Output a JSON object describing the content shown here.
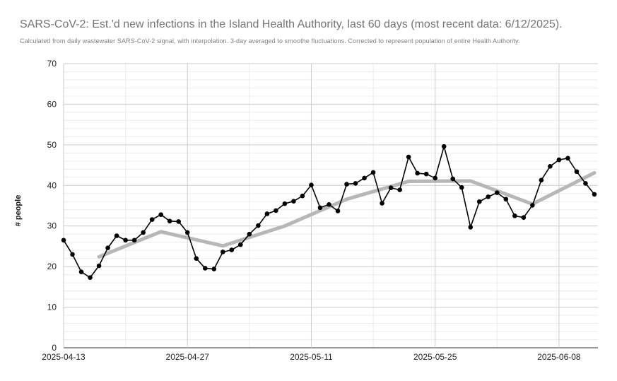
{
  "chart_data": {
    "type": "line",
    "title": "SARS-CoV-2: Est.'d new infections in the Island Health Authority, last 60 days (most recent data: 6/12/2025).",
    "subtitle": "Calculated from daily wastewater SARS-CoV-2 signal, with interpolation. 3-day averaged to smoothe fluctuations. Corrected to represent population of entire Health Authority.",
    "xlabel": "",
    "ylabel": "# people",
    "ylim": [
      0,
      70
    ],
    "yticks": [
      0,
      10,
      20,
      30,
      40,
      50,
      60,
      70
    ],
    "x_start": "2025-04-13",
    "x_end": "2025-06-12",
    "xticks": [
      "2025-04-13",
      "2025-04-27",
      "2025-05-11",
      "2025-05-25",
      "2025-06-08"
    ],
    "grid": true,
    "legend": "none",
    "series": [
      {
        "color": "#000000",
        "markers": true,
        "points": [
          [
            "2025-04-13",
            26.5
          ],
          [
            "2025-04-14",
            23.0
          ],
          [
            "2025-04-15",
            18.7
          ],
          [
            "2025-04-16",
            17.3
          ],
          [
            "2025-04-17",
            20.2
          ],
          [
            "2025-04-18",
            24.6
          ],
          [
            "2025-04-19",
            27.6
          ],
          [
            "2025-04-20",
            26.5
          ],
          [
            "2025-04-21",
            26.5
          ],
          [
            "2025-04-22",
            28.4
          ],
          [
            "2025-04-23",
            31.6
          ],
          [
            "2025-04-24",
            32.8
          ],
          [
            "2025-04-25",
            31.2
          ],
          [
            "2025-04-26",
            31.1
          ],
          [
            "2025-04-27",
            28.4
          ],
          [
            "2025-04-28",
            22.0
          ],
          [
            "2025-04-29",
            19.6
          ],
          [
            "2025-04-30",
            19.4
          ],
          [
            "2025-05-01",
            23.6
          ],
          [
            "2025-05-02",
            24.1
          ],
          [
            "2025-05-03",
            25.4
          ],
          [
            "2025-05-04",
            28.0
          ],
          [
            "2025-05-05",
            30.1
          ],
          [
            "2025-05-06",
            33.0
          ],
          [
            "2025-05-07",
            33.8
          ],
          [
            "2025-05-08",
            35.5
          ],
          [
            "2025-05-09",
            36.1
          ],
          [
            "2025-05-10",
            37.4
          ],
          [
            "2025-05-11",
            40.1
          ],
          [
            "2025-05-12",
            34.5
          ],
          [
            "2025-05-13",
            35.3
          ],
          [
            "2025-05-14",
            33.7
          ],
          [
            "2025-05-15",
            40.3
          ],
          [
            "2025-05-16",
            40.5
          ],
          [
            "2025-05-17",
            41.8
          ],
          [
            "2025-05-18",
            43.2
          ],
          [
            "2025-05-19",
            35.6
          ],
          [
            "2025-05-20",
            39.4
          ],
          [
            "2025-05-21",
            38.9
          ],
          [
            "2025-05-22",
            47.0
          ],
          [
            "2025-05-23",
            43.0
          ],
          [
            "2025-05-24",
            42.8
          ],
          [
            "2025-05-25",
            41.8
          ],
          [
            "2025-05-26",
            49.6
          ],
          [
            "2025-05-27",
            41.6
          ],
          [
            "2025-05-28",
            39.5
          ],
          [
            "2025-05-29",
            29.7
          ],
          [
            "2025-05-30",
            36.0
          ],
          [
            "2025-05-31",
            37.2
          ],
          [
            "2025-06-01",
            38.2
          ],
          [
            "2025-06-02",
            36.6
          ],
          [
            "2025-06-03",
            32.5
          ],
          [
            "2025-06-04",
            32.1
          ],
          [
            "2025-06-05",
            35.1
          ],
          [
            "2025-06-06",
            41.3
          ],
          [
            "2025-06-07",
            44.7
          ],
          [
            "2025-06-08",
            46.3
          ],
          [
            "2025-06-09",
            46.7
          ],
          [
            "2025-06-10",
            43.4
          ],
          [
            "2025-06-11",
            40.5
          ],
          [
            "2025-06-12",
            37.8
          ]
        ]
      },
      {
        "color": "#b7b7b7",
        "markers": false,
        "points": [
          [
            "2025-04-17",
            22.4
          ],
          [
            "2025-04-24",
            28.6
          ],
          [
            "2025-05-01",
            25.1
          ],
          [
            "2025-05-08",
            30.0
          ],
          [
            "2025-05-15",
            36.6
          ],
          [
            "2025-05-22",
            41.0
          ],
          [
            "2025-05-29",
            41.1
          ],
          [
            "2025-06-05",
            35.4
          ],
          [
            "2025-06-12",
            43.1
          ]
        ]
      }
    ]
  }
}
